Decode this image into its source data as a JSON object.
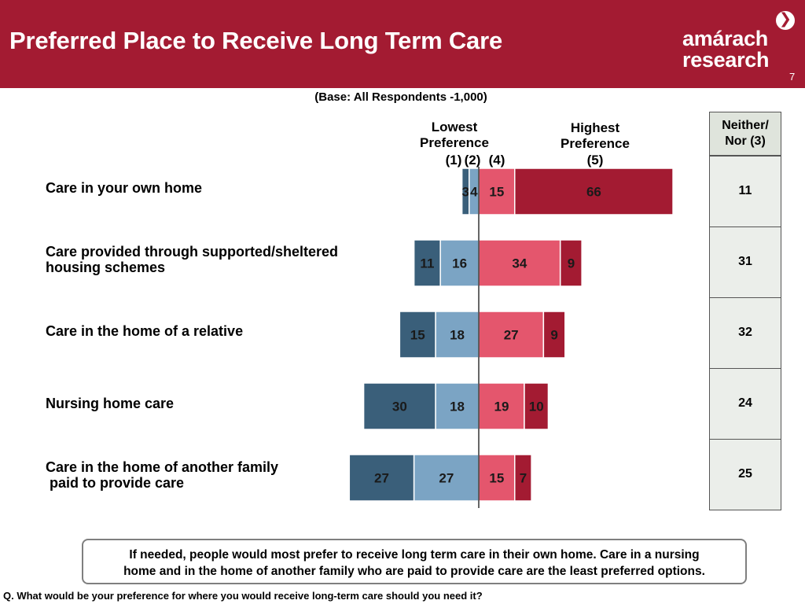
{
  "header": {
    "title": "Preferred Place to Receive Long Term Care",
    "logo_text": "amárach\nresearch",
    "logo_symbol": "❯",
    "page_number": "7",
    "background": "#a31b32"
  },
  "base_note": "(Base:  All Respondents -1,000)",
  "legend": {
    "lowest": "Lowest\nPreference",
    "code_1": "(1)",
    "code_2": "(2)",
    "code_4": "(4)",
    "highest": "Highest\nPreference",
    "code_5": "(5)"
  },
  "neither": {
    "header": "Neither/\nNor (3)",
    "values": [
      "11",
      "31",
      "32",
      "24",
      "25"
    ]
  },
  "chart_data": {
    "type": "bar",
    "orientation": "horizontal",
    "stacked": "diverging",
    "categories": [
      "Care in your own home",
      "Care provided through supported/sheltered\nhousing schemes",
      "Care in the home of a relative",
      "Nursing home care",
      "Care in the home of another family\n paid to provide care"
    ],
    "series": [
      {
        "name": "(1)",
        "values": [
          3,
          11,
          15,
          30,
          27
        ],
        "color": "#3a5f7a"
      },
      {
        "name": "(2)",
        "values": [
          4,
          16,
          18,
          18,
          27
        ],
        "color": "#7ba4c4"
      },
      {
        "name": "(4)",
        "values": [
          15,
          34,
          27,
          19,
          15
        ],
        "color": "#e4566d"
      },
      {
        "name": "(5)",
        "values": [
          66,
          9,
          9,
          10,
          7
        ],
        "color": "#a31b32"
      }
    ],
    "neither_nor": [
      11,
      31,
      32,
      24,
      25
    ]
  },
  "summary": "If needed, people would most prefer to receive long term care in their own home.  Care in a nursing\nhome and in the home of another family who are paid to provide care are the least preferred options.",
  "question": "Q. What would be your preference for where you would receive long-term care should you need it?"
}
